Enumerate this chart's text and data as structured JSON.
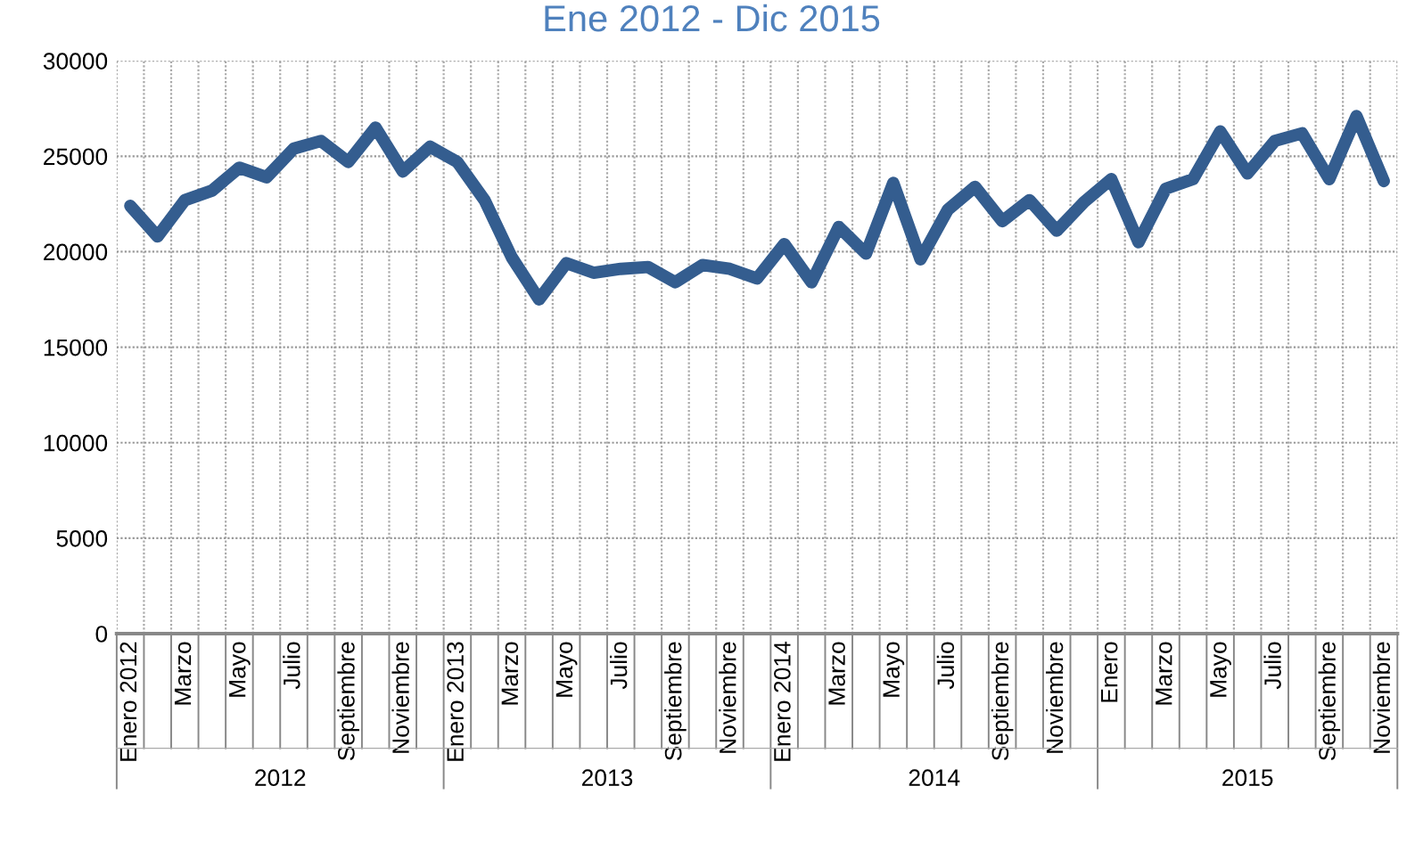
{
  "chart_data": {
    "type": "line",
    "title": "Ene 2012 - Dic 2015",
    "categories": [
      "Enero 2012",
      null,
      "Marzo",
      null,
      "Mayo",
      null,
      "Julio",
      null,
      "Septiembre",
      null,
      "Noviembre",
      null,
      "Enero 2013",
      null,
      "Marzo",
      null,
      "Mayo",
      null,
      "Julio",
      null,
      "Septiembre",
      null,
      "Noviembre",
      null,
      "Enero 2014",
      null,
      "Marzo",
      null,
      "Mayo",
      null,
      "Julio",
      null,
      "Septiembre",
      null,
      "Noviembre",
      null,
      "Enero",
      null,
      "Marzo",
      null,
      "Mayo",
      null,
      "Julio",
      null,
      "Septiembre",
      null,
      "Noviembre"
    ],
    "series": [
      {
        "color": "#345d8f",
        "values": [
          22400,
          20800,
          22700,
          23200,
          24400,
          23900,
          25400,
          25800,
          24700,
          26500,
          24200,
          25500,
          24700,
          22700,
          19700,
          17500,
          19400,
          18900,
          19100,
          19200,
          18400,
          19300,
          19100,
          18600,
          20400,
          18400,
          21300,
          19900,
          23600,
          19600,
          22200,
          23400,
          21600,
          22700,
          21100,
          22600,
          23800,
          20500,
          23300,
          23800,
          26300,
          24100,
          25800,
          26200,
          23800,
          27100,
          23700
        ]
      }
    ],
    "annotations": [
      "2012",
      "2013",
      "2014",
      "2015"
    ],
    "ylim": [
      0,
      30000
    ],
    "yticks": [
      0,
      5000,
      10000,
      15000,
      20000,
      25000,
      30000
    ],
    "grid": true,
    "legend": false,
    "marker": "none",
    "line_style": "solid"
  }
}
